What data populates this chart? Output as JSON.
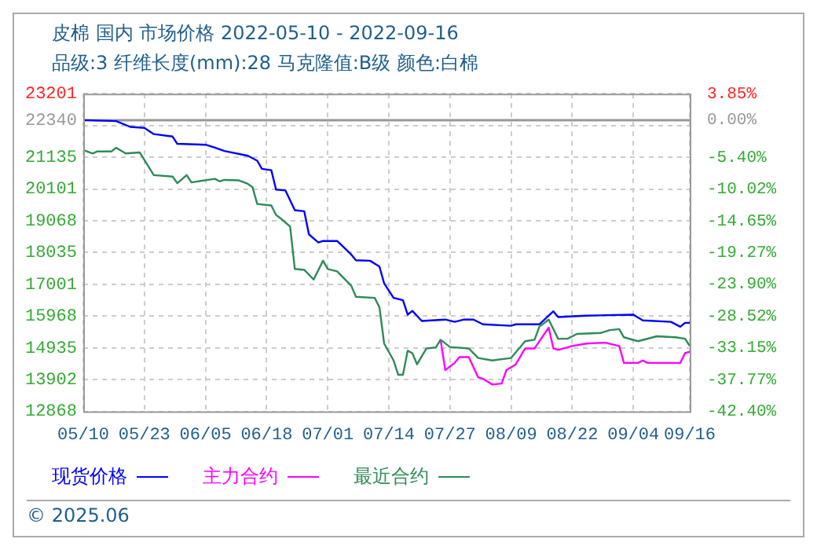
{
  "chart_data": {
    "type": "line",
    "title": "皮棉 国内 市场价格 2022-05-10 - 2022-09-16",
    "subtitle": "品级:3 纤维长度(mm):28 马克隆值:B级 颜色:白棉",
    "annotations": [
      "© 2025.06"
    ],
    "xlim": [
      "2022-05-10",
      "2022-09-16"
    ],
    "xticks": [
      {
        "value": "2022-05-10",
        "label": "05/10"
      },
      {
        "value": "2022-05-23",
        "label": "05/23"
      },
      {
        "value": "2022-06-05",
        "label": "06/05"
      },
      {
        "value": "2022-06-18",
        "label": "06/18"
      },
      {
        "value": "2022-07-01",
        "label": "07/01"
      },
      {
        "value": "2022-07-14",
        "label": "07/14"
      },
      {
        "value": "2022-07-27",
        "label": "07/27"
      },
      {
        "value": "2022-08-09",
        "label": "08/09"
      },
      {
        "value": "2022-08-22",
        "label": "08/22"
      },
      {
        "value": "2022-09-04",
        "label": "09/04"
      },
      {
        "value": "2022-09-16",
        "label": "09/16"
      }
    ],
    "ylim": [
      12868,
      23201
    ],
    "yticks": [
      12868,
      13902,
      14935,
      15968,
      17001,
      18035,
      19068,
      20101,
      21135,
      {
        "value": 22168,
        "label": null
      },
      22340,
      23201
    ],
    "y2lim": [
      -42.4,
      3.85
    ],
    "y2ticks": [
      {
        "value": -42.4,
        "label": "-42.40%"
      },
      {
        "value": -37.77,
        "label": "-37.77%"
      },
      {
        "value": -33.15,
        "label": "-33.15%"
      },
      {
        "value": -28.52,
        "label": "-28.52%"
      },
      {
        "value": -23.9,
        "label": "-23.90%"
      },
      {
        "value": -19.27,
        "label": "-19.27%"
      },
      {
        "value": -14.65,
        "label": "-14.65%"
      },
      {
        "value": -10.02,
        "label": "-10.02%"
      },
      {
        "value": -5.4,
        "label": "-5.40%"
      },
      {
        "value": -0.77,
        "label": null
      },
      {
        "value": 0.0,
        "label": "0.00%"
      },
      {
        "value": 3.85,
        "label": "3.85%"
      }
    ],
    "ref_lines": [
      {
        "axis": "y",
        "value": 22340,
        "color": "#999999",
        "line_style": "solid"
      }
    ],
    "grid": true,
    "legend": "bottom",
    "marker": "none",
    "line_style": "solid",
    "series": [
      {
        "name": "现货价格",
        "color": "#0000ff",
        "x": [
          "2022-05-10",
          "2022-05-17",
          "2022-05-20",
          "2022-05-23",
          "2022-05-25",
          "2022-05-29",
          "2022-05-30",
          "2022-06-05",
          "2022-06-07",
          "2022-06-09",
          "2022-06-14",
          "2022-06-16",
          "2022-06-17",
          "2022-06-19",
          "2022-06-20",
          "2022-06-22",
          "2022-06-24",
          "2022-06-26",
          "2022-06-27",
          "2022-06-29",
          "2022-06-30",
          "2022-07-03",
          "2022-07-06",
          "2022-07-07",
          "2022-07-10",
          "2022-07-12",
          "2022-07-13",
          "2022-07-15",
          "2022-07-17",
          "2022-07-18",
          "2022-07-19",
          "2022-07-21",
          "2022-07-26",
          "2022-07-28",
          "2022-07-30",
          "2022-08-01",
          "2022-08-03",
          "2022-08-09",
          "2022-08-10",
          "2022-08-15",
          "2022-08-18",
          "2022-08-19",
          "2022-08-25",
          "2022-09-04",
          "2022-09-06",
          "2022-09-12",
          "2022-09-14",
          "2022-09-15",
          "2022-09-16"
        ],
        "values": [
          22340,
          22309,
          22120,
          22088,
          21886,
          21806,
          21570,
          21540,
          21445,
          21337,
          21181,
          21022,
          20757,
          20712,
          20083,
          20055,
          19410,
          19378,
          18626,
          18363,
          18410,
          18410,
          17969,
          17781,
          17767,
          17579,
          17030,
          16560,
          16485,
          16015,
          16137,
          15808,
          15855,
          15780,
          15855,
          15855,
          15700,
          15653,
          15700,
          15700,
          16123,
          15935,
          15982,
          16015,
          15827,
          15780,
          15620,
          15748,
          15748
        ]
      },
      {
        "name": "主力合约",
        "color": "#ff00ff",
        "x": [
          "2022-07-25",
          "2022-07-26",
          "2022-07-28",
          "2022-07-29",
          "2022-07-31",
          "2022-08-02",
          "2022-08-03",
          "2022-08-05",
          "2022-08-07",
          "2022-08-08",
          "2022-08-10",
          "2022-08-12",
          "2022-08-14",
          "2022-08-17",
          "2022-08-18",
          "2022-08-19",
          "2022-08-22",
          "2022-08-25",
          "2022-08-29",
          "2022-09-01",
          "2022-09-02",
          "2022-09-05",
          "2022-09-06",
          "2022-09-07",
          "2022-09-14",
          "2022-09-15",
          "2022-09-16"
        ],
        "values": [
          15198,
          14211,
          14446,
          14634,
          14634,
          13977,
          13930,
          13742,
          13775,
          14211,
          14399,
          14916,
          14916,
          15592,
          14916,
          14869,
          14996,
          15075,
          15104,
          14996,
          14446,
          14446,
          14526,
          14446,
          14446,
          14761,
          14808
        ]
      },
      {
        "name": "最近合约",
        "color": "#2e8b57",
        "x": [
          "2022-05-10",
          "2022-05-12",
          "2022-05-13",
          "2022-05-16",
          "2022-05-17",
          "2022-05-19",
          "2022-05-22",
          "2022-05-25",
          "2022-05-29",
          "2022-05-30",
          "2022-06-01",
          "2022-06-02",
          "2022-06-07",
          "2022-06-08",
          "2022-06-09",
          "2022-06-12",
          "2022-06-14",
          "2022-06-15",
          "2022-06-16",
          "2022-06-19",
          "2022-06-20",
          "2022-06-21",
          "2022-06-23",
          "2022-06-24",
          "2022-06-26",
          "2022-06-28",
          "2022-06-30",
          "2022-07-01",
          "2022-07-03",
          "2022-07-06",
          "2022-07-07",
          "2022-07-11",
          "2022-07-12",
          "2022-07-13",
          "2022-07-15",
          "2022-07-16",
          "2022-07-17",
          "2022-07-18",
          "2022-07-19",
          "2022-07-20",
          "2022-07-22",
          "2022-07-24",
          "2022-07-25",
          "2022-07-27",
          "2022-07-31",
          "2022-08-02",
          "2022-08-05",
          "2022-08-09",
          "2022-08-12",
          "2022-08-14",
          "2022-08-15",
          "2022-08-17",
          "2022-08-19",
          "2022-08-21",
          "2022-08-23",
          "2022-08-28",
          "2022-08-30",
          "2022-09-01",
          "2022-09-02",
          "2022-09-05",
          "2022-09-09",
          "2022-09-13",
          "2022-09-15",
          "2022-09-16"
        ],
        "values": [
          21370,
          21257,
          21323,
          21323,
          21445,
          21257,
          21290,
          20552,
          20505,
          20289,
          20552,
          20317,
          20430,
          20350,
          20397,
          20383,
          20270,
          20162,
          19613,
          19566,
          19256,
          19143,
          18880,
          17500,
          17471,
          17156,
          17767,
          17500,
          17424,
          16955,
          16593,
          16560,
          16250,
          15075,
          14526,
          14057,
          14057,
          14841,
          14761,
          14399,
          14916,
          14949,
          15198,
          14963,
          14916,
          14606,
          14526,
          14606,
          15151,
          15198,
          15620,
          15855,
          15231,
          15231,
          15386,
          15418,
          15512,
          15545,
          15278,
          15151,
          15311,
          15278,
          15231,
          14996
        ]
      }
    ]
  }
}
